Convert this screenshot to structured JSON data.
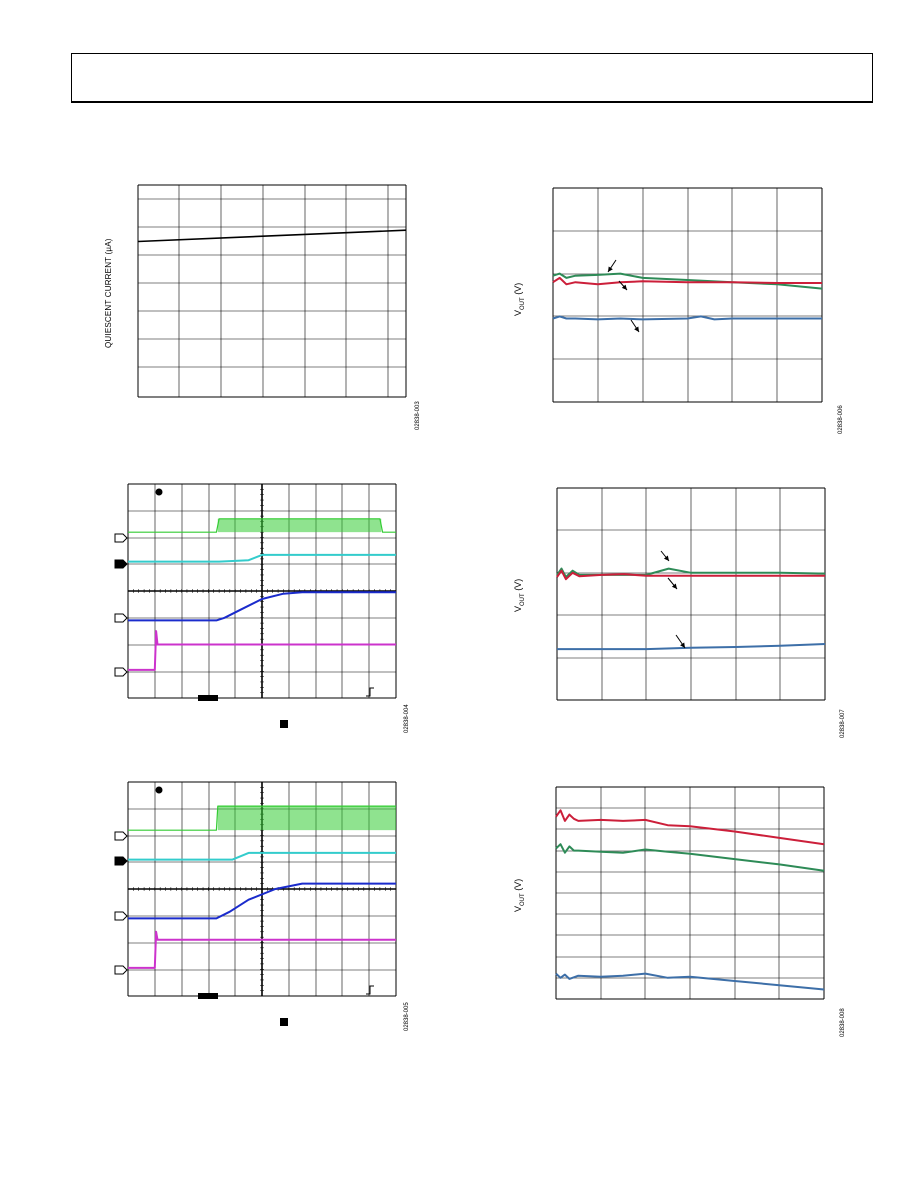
{
  "page": {
    "fig1_code": "02838-003",
    "fig2_code": "02838-006",
    "fig3_code": "02838-004",
    "fig4_code": "02838-007",
    "fig5_code": "02838-005",
    "fig6_code": "02838-008"
  },
  "chart_data": [
    {
      "id": "quiescent-current",
      "type": "line",
      "ylabel": "QUIESCENT CURRENT (µA)",
      "grid": true,
      "xlim": [
        0,
        6.5
      ],
      "ylim": [
        0,
        7.5
      ],
      "series": [
        {
          "color": "#000000",
          "x": [
            0,
            6.5
          ],
          "y": [
            5.5,
            5.9
          ]
        }
      ]
    },
    {
      "id": "vout-a",
      "type": "line",
      "ylabel": "V_OUT (V)",
      "grid": true,
      "xlim": [
        0,
        6
      ],
      "ylim": [
        0,
        5
      ],
      "series": [
        {
          "color": "#2e8b57",
          "x": [
            0,
            0.15,
            0.3,
            0.5,
            1.0,
            1.5,
            2.0,
            3.0,
            4.0,
            5.0,
            6.0
          ],
          "y": [
            2.95,
            3.0,
            2.9,
            2.95,
            2.97,
            3.0,
            2.9,
            2.85,
            2.8,
            2.75,
            2.65
          ]
        },
        {
          "color": "#cc1f3a",
          "x": [
            0,
            0.15,
            0.3,
            0.5,
            1.0,
            1.5,
            2.0,
            3.0,
            4.0,
            5.0,
            6.0
          ],
          "y": [
            2.8,
            2.9,
            2.75,
            2.8,
            2.75,
            2.8,
            2.82,
            2.8,
            2.8,
            2.78,
            2.78
          ]
        },
        {
          "color": "#3d6fa8",
          "x": [
            0,
            0.15,
            0.3,
            0.5,
            1.0,
            1.5,
            2.0,
            3.0,
            3.3,
            3.6,
            4.0,
            5.0,
            6.0
          ],
          "y": [
            1.95,
            2.0,
            1.95,
            1.95,
            1.93,
            1.95,
            1.93,
            1.95,
            2.0,
            1.93,
            1.95,
            1.95,
            1.95
          ]
        }
      ]
    },
    {
      "id": "scope-1",
      "type": "line",
      "grid": true,
      "xlim": [
        0,
        10
      ],
      "ylim": [
        0,
        8
      ],
      "series": [
        {
          "color": "#33cc33",
          "x": [
            0,
            3.3,
            3.4,
            9.4,
            9.5,
            10
          ],
          "y": [
            6.2,
            6.2,
            6.7,
            6.7,
            6.2,
            6.2
          ]
        },
        {
          "color": "#33cccc",
          "x": [
            0,
            3.4,
            4.5,
            5.0,
            10
          ],
          "y": [
            5.1,
            5.1,
            5.15,
            5.35,
            5.35
          ]
        },
        {
          "color": "#1a2bcc",
          "x": [
            0,
            3.3,
            3.6,
            4.2,
            5.0,
            5.8,
            6.5,
            10
          ],
          "y": [
            2.9,
            2.9,
            3.0,
            3.3,
            3.7,
            3.9,
            3.95,
            3.95
          ]
        },
        {
          "color": "#cc33cc",
          "x": [
            0,
            1.0,
            1.05,
            1.1,
            10
          ],
          "y": [
            1.05,
            1.05,
            2.5,
            2.0,
            2.0
          ]
        }
      ]
    },
    {
      "id": "vout-b",
      "type": "line",
      "ylabel": "V_OUT (V)",
      "grid": true,
      "xlim": [
        0,
        6
      ],
      "ylim": [
        0,
        5
      ],
      "series": [
        {
          "color": "#2e8b57",
          "x": [
            0,
            0.1,
            0.2,
            0.35,
            0.5,
            1.0,
            1.5,
            2.0,
            2.5,
            3.0,
            4.0,
            5.0,
            6.0
          ],
          "y": [
            2.95,
            3.1,
            2.9,
            3.05,
            2.95,
            2.95,
            2.95,
            2.95,
            3.1,
            3.0,
            3.0,
            3.0,
            2.98
          ]
        },
        {
          "color": "#cc1f3a",
          "x": [
            0,
            0.1,
            0.2,
            0.35,
            0.5,
            1.0,
            1.5,
            2.0,
            2.5,
            3.0,
            4.0,
            5.0,
            6.0
          ],
          "y": [
            2.9,
            3.05,
            2.85,
            3.0,
            2.92,
            2.95,
            2.97,
            2.93,
            2.93,
            2.93,
            2.93,
            2.93,
            2.93
          ]
        },
        {
          "color": "#3d6fa8",
          "x": [
            0,
            1.0,
            2.0,
            3.0,
            4.0,
            5.0,
            6.0
          ],
          "y": [
            1.2,
            1.2,
            1.2,
            1.23,
            1.25,
            1.28,
            1.32
          ]
        }
      ]
    },
    {
      "id": "scope-2",
      "type": "line",
      "grid": true,
      "xlim": [
        0,
        10
      ],
      "ylim": [
        0,
        8
      ],
      "series": [
        {
          "color": "#33cc33",
          "x": [
            0,
            3.3,
            3.35,
            10
          ],
          "y": [
            6.2,
            6.2,
            7.1,
            7.1
          ]
        },
        {
          "color": "#33cccc",
          "x": [
            0,
            3.9,
            4.5,
            10
          ],
          "y": [
            5.1,
            5.1,
            5.35,
            5.35
          ]
        },
        {
          "color": "#1a2bcc",
          "x": [
            0,
            3.3,
            3.8,
            4.5,
            5.5,
            6.5,
            10
          ],
          "y": [
            2.9,
            2.9,
            3.15,
            3.6,
            4.0,
            4.2,
            4.2
          ]
        },
        {
          "color": "#cc33cc",
          "x": [
            0,
            1.0,
            1.05,
            1.1,
            10
          ],
          "y": [
            1.05,
            1.05,
            2.4,
            2.1,
            2.1
          ]
        }
      ]
    },
    {
      "id": "vout-c",
      "type": "line",
      "ylabel": "V_OUT (V)",
      "grid": true,
      "xlim": [
        0,
        6
      ],
      "ylim": [
        0,
        10
      ],
      "series": [
        {
          "color": "#cc1f3a",
          "x": [
            0,
            0.1,
            0.2,
            0.3,
            0.4,
            0.5,
            1.0,
            1.5,
            2.0,
            2.5,
            3.0,
            4.0,
            5.0,
            6.0
          ],
          "y": [
            8.6,
            8.9,
            8.4,
            8.7,
            8.5,
            8.4,
            8.45,
            8.4,
            8.45,
            8.2,
            8.15,
            7.9,
            7.6,
            7.3
          ]
        },
        {
          "color": "#2e8b57",
          "x": [
            0,
            0.1,
            0.2,
            0.3,
            0.4,
            0.5,
            1.0,
            1.5,
            2.0,
            2.5,
            3.0,
            4.0,
            5.0,
            6.0
          ],
          "y": [
            7.1,
            7.3,
            6.9,
            7.2,
            7.0,
            7.0,
            6.95,
            6.9,
            7.05,
            6.95,
            6.85,
            6.6,
            6.35,
            6.05
          ]
        },
        {
          "color": "#3d6fa8",
          "x": [
            0,
            0.1,
            0.2,
            0.3,
            0.5,
            1.0,
            1.5,
            2.0,
            2.5,
            3.0,
            4.0,
            5.0,
            6.0
          ],
          "y": [
            1.2,
            1.0,
            1.15,
            0.95,
            1.1,
            1.05,
            1.1,
            1.2,
            1.0,
            1.05,
            0.85,
            0.65,
            0.45
          ]
        }
      ]
    }
  ]
}
